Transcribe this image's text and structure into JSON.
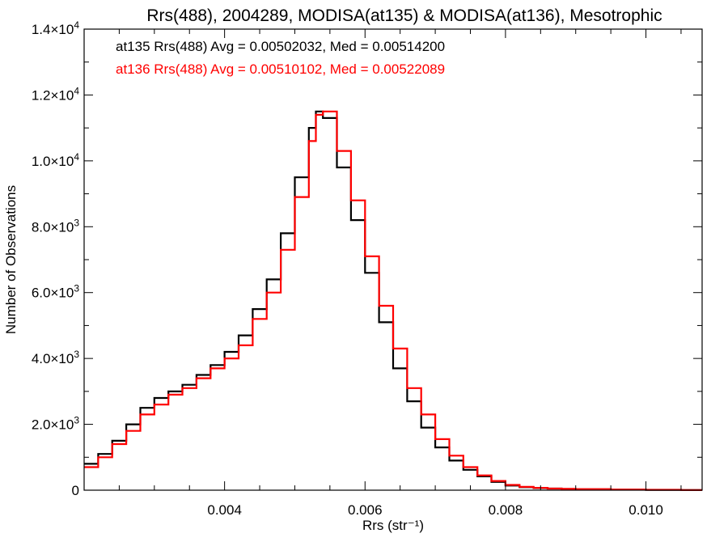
{
  "chart_data": {
    "type": "line",
    "step": true,
    "title": "Rrs(488), 2004289, MODISA(at135) & MODISA(at136), Mesotrophic",
    "xlabel": "Rrs (str⁻¹)",
    "ylabel": "Number of Observations",
    "xlim": [
      0.002,
      0.0108
    ],
    "ylim": [
      0,
      14000
    ],
    "xticks": [
      {
        "value": 0.004,
        "label": "0.004"
      },
      {
        "value": 0.006,
        "label": "0.006"
      },
      {
        "value": 0.008,
        "label": "0.008"
      },
      {
        "value": 0.01,
        "label": "0.010"
      }
    ],
    "yticks": [
      {
        "value": 0,
        "mant": "0",
        "exp": ""
      },
      {
        "value": 2000,
        "mant": "2.0×10",
        "exp": "3"
      },
      {
        "value": 4000,
        "mant": "4.0×10",
        "exp": "3"
      },
      {
        "value": 6000,
        "mant": "6.0×10",
        "exp": "3"
      },
      {
        "value": 8000,
        "mant": "8.0×10",
        "exp": "3"
      },
      {
        "value": 10000,
        "mant": "1.0×10",
        "exp": "4"
      },
      {
        "value": 12000,
        "mant": "1.2×10",
        "exp": "4"
      },
      {
        "value": 14000,
        "mant": "1.4×10",
        "exp": "4"
      }
    ],
    "legend": [
      {
        "text": "at135 Rrs(488) Avg = 0.00502032, Med = 0.00514200",
        "color": "#000000"
      },
      {
        "text": "at136 Rrs(488) Avg = 0.00510102, Med = 0.00522089",
        "color": "#ff0000"
      }
    ],
    "legend_placement": "top-left",
    "series": [
      {
        "color": "#000000",
        "x": [
          0.002,
          0.0022,
          0.0024,
          0.0026,
          0.0028,
          0.003,
          0.0032,
          0.0034,
          0.0036,
          0.0038,
          0.004,
          0.0042,
          0.0044,
          0.0046,
          0.0048,
          0.005,
          0.0052,
          0.0053,
          0.0054,
          0.0056,
          0.0058,
          0.006,
          0.0062,
          0.0064,
          0.0066,
          0.0068,
          0.007,
          0.0072,
          0.0074,
          0.0076,
          0.0078,
          0.008,
          0.0082,
          0.0084,
          0.0086,
          0.0088,
          0.009,
          0.0095,
          0.01,
          0.0105,
          0.0108
        ],
        "y": [
          800,
          1100,
          1500,
          2000,
          2500,
          2800,
          3000,
          3200,
          3500,
          3800,
          4200,
          4700,
          5500,
          6400,
          7800,
          9500,
          11000,
          11500,
          11300,
          9800,
          8200,
          6600,
          5100,
          3700,
          2700,
          1900,
          1300,
          900,
          620,
          420,
          250,
          140,
          90,
          65,
          48,
          38,
          30,
          18,
          10,
          5,
          4
        ]
      },
      {
        "color": "#ff0000",
        "x": [
          0.002,
          0.0022,
          0.0024,
          0.0026,
          0.0028,
          0.003,
          0.0032,
          0.0034,
          0.0036,
          0.0038,
          0.004,
          0.0042,
          0.0044,
          0.0046,
          0.0048,
          0.005,
          0.0052,
          0.0053,
          0.0054,
          0.0056,
          0.0058,
          0.006,
          0.0062,
          0.0064,
          0.0066,
          0.0068,
          0.007,
          0.0072,
          0.0074,
          0.0076,
          0.0078,
          0.008,
          0.0082,
          0.0084,
          0.0086,
          0.0088,
          0.009,
          0.0095,
          0.01,
          0.0105,
          0.0108
        ],
        "y": [
          700,
          1000,
          1400,
          1800,
          2300,
          2600,
          2900,
          3100,
          3400,
          3700,
          4000,
          4400,
          5200,
          6000,
          7300,
          8900,
          10600,
          11400,
          11500,
          10300,
          8800,
          7100,
          5600,
          4300,
          3100,
          2300,
          1550,
          1050,
          700,
          450,
          280,
          160,
          100,
          70,
          50,
          40,
          32,
          20,
          12,
          6,
          4
        ]
      }
    ]
  }
}
